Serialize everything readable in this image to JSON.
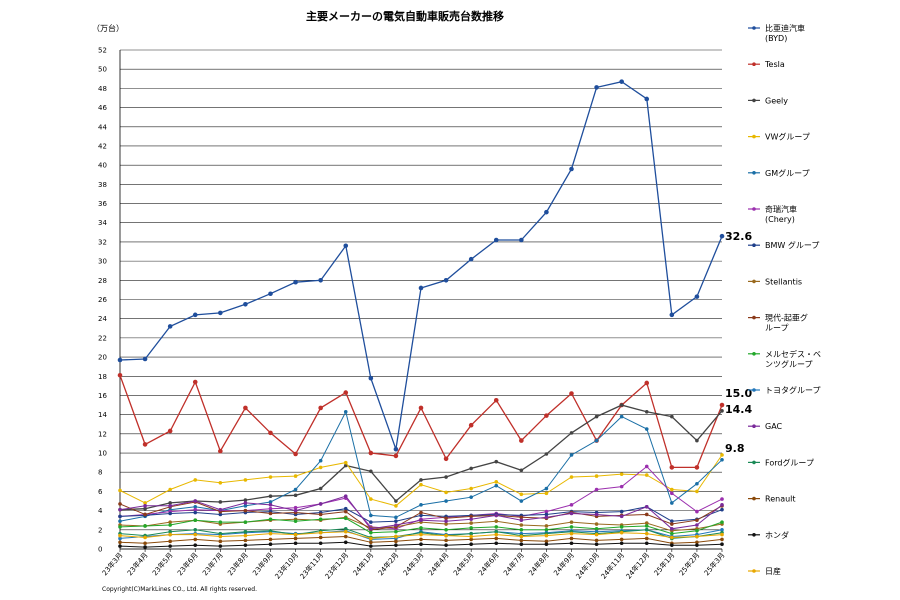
{
  "chart_data": {
    "type": "line",
    "title": "主要メーカーの電気自動車販売台数推移",
    "unit_label": "（万台）",
    "copyright": "Copyright(C)MarkLines CO., Ltd. All rights reserved.",
    "ylim": [
      0,
      52
    ],
    "y_ticks": [
      "0",
      "2",
      "4",
      "6",
      "8",
      "10",
      "12",
      "14",
      "16",
      "18",
      "20",
      "22",
      "24",
      "26",
      "28",
      "30",
      "32",
      "34",
      "36",
      "38",
      "40",
      "42",
      "44",
      "46",
      "48",
      "50",
      "52"
    ],
    "grid": true,
    "legend_position": "right",
    "categories": [
      "23年3月",
      "23年4月",
      "23年5月",
      "23年6月",
      "23年7月",
      "23年8月",
      "23年9月",
      "23年10月",
      "23年11月",
      "23年12月",
      "24年1月",
      "24年2月",
      "24年3月",
      "24年4月",
      "24年5月",
      "24年6月",
      "24年7月",
      "24年8月",
      "24年9月",
      "24年10月",
      "24年11月",
      "24年12月",
      "25年1月",
      "25年2月",
      "25年3月"
    ],
    "series": [
      {
        "name": "比亜迪汽車\n(BYD)",
        "color": "#1f4e9c",
        "values": [
          19.7,
          19.8,
          23.2,
          24.4,
          24.6,
          25.5,
          26.6,
          27.8,
          28.0,
          31.6,
          17.8,
          10.4,
          27.2,
          28.0,
          30.2,
          32.2,
          32.2,
          35.1,
          39.6,
          48.1,
          48.7,
          46.9,
          24.4,
          26.3,
          32.6
        ]
      },
      {
        "name": "Tesla",
        "color": "#c0302a",
        "values": [
          18.1,
          10.9,
          12.3,
          17.4,
          10.2,
          14.7,
          12.1,
          9.9,
          14.7,
          16.3,
          10.0,
          9.7,
          14.7,
          9.4,
          12.9,
          15.5,
          11.3,
          13.9,
          16.2,
          11.3,
          15.0,
          17.3,
          8.5,
          8.5,
          15.0
        ]
      },
      {
        "name": "Geely",
        "color": "#444444",
        "values": [
          4.1,
          4.2,
          4.8,
          5.0,
          4.9,
          5.1,
          5.5,
          5.6,
          6.3,
          8.7,
          8.1,
          5.0,
          7.2,
          7.5,
          8.4,
          9.1,
          8.2,
          9.9,
          12.1,
          13.8,
          15.0,
          14.3,
          13.8,
          11.3,
          14.4
        ]
      },
      {
        "name": "VWグループ",
        "color": "#e8b800",
        "values": [
          6.1,
          4.8,
          6.2,
          7.2,
          6.9,
          7.2,
          7.5,
          7.6,
          8.5,
          9.0,
          5.2,
          4.5,
          6.7,
          5.9,
          6.3,
          7.0,
          5.7,
          5.8,
          7.5,
          7.6,
          7.8,
          7.7,
          6.2,
          6.0,
          9.8
        ]
      },
      {
        "name": "GMグループ",
        "color": "#1a6fa6",
        "values": [
          2.9,
          3.4,
          4.1,
          4.4,
          4.0,
          4.5,
          4.9,
          6.2,
          9.2,
          14.3,
          3.5,
          3.3,
          4.6,
          5.0,
          5.4,
          6.6,
          5.0,
          6.3,
          9.8,
          11.3,
          13.8,
          12.5,
          4.8,
          6.8,
          9.3
        ]
      },
      {
        "name": "奇瑞汽車\n(Chery)",
        "color": "#9b2fae",
        "values": [
          3.4,
          3.6,
          3.9,
          4.1,
          4.0,
          4.0,
          4.2,
          4.3,
          4.7,
          5.3,
          2.3,
          2.1,
          3.1,
          3.3,
          3.5,
          3.7,
          3.4,
          3.9,
          4.6,
          6.2,
          6.5,
          8.6,
          5.8,
          3.9,
          5.2
        ]
      },
      {
        "name": "BMW グループ",
        "color": "#1f3f8a",
        "values": [
          3.4,
          3.5,
          3.7,
          3.8,
          3.6,
          3.8,
          3.9,
          3.6,
          3.8,
          4.2,
          2.8,
          2.9,
          3.5,
          3.4,
          3.5,
          3.6,
          3.5,
          3.6,
          3.9,
          3.8,
          3.9,
          4.4,
          2.9,
          3.1,
          4.1
        ]
      },
      {
        "name": "Stellantis",
        "color": "#9a6a1f",
        "values": [
          2.5,
          2.4,
          2.8,
          3.0,
          2.6,
          2.8,
          3.0,
          3.1,
          3.0,
          3.3,
          2.2,
          2.3,
          2.8,
          2.6,
          2.7,
          2.9,
          2.5,
          2.4,
          2.8,
          2.6,
          2.5,
          2.7,
          1.9,
          2.1,
          2.6
        ]
      },
      {
        "name": "現代-起亜グ\nループ",
        "color": "#8a3a1a",
        "values": [
          4.7,
          3.6,
          4.4,
          4.9,
          3.9,
          4.0,
          3.7,
          3.8,
          3.6,
          3.9,
          2.0,
          2.3,
          3.8,
          3.2,
          3.4,
          3.5,
          3.3,
          3.2,
          3.8,
          3.4,
          3.5,
          3.6,
          2.6,
          3.0,
          4.5
        ]
      },
      {
        "name": "メルセデス・ベ\nンツグループ",
        "color": "#22a82a",
        "values": [
          2.3,
          2.4,
          2.5,
          3.0,
          2.8,
          2.8,
          3.1,
          2.9,
          3.1,
          3.2,
          1.7,
          1.8,
          2.2,
          2.0,
          2.2,
          2.3,
          2.0,
          2.0,
          2.3,
          2.1,
          2.3,
          2.4,
          1.6,
          1.9,
          2.8
        ]
      },
      {
        "name": "トヨタグループ",
        "color": "#2277bb",
        "values": [
          1.1,
          1.3,
          1.5,
          1.6,
          1.5,
          1.7,
          1.8,
          1.6,
          1.7,
          1.9,
          1.0,
          1.1,
          1.8,
          1.5,
          1.6,
          1.8,
          1.6,
          1.7,
          1.9,
          1.8,
          1.9,
          2.0,
          1.3,
          1.5,
          2.0
        ]
      },
      {
        "name": "GAC",
        "color": "#7a2a9a",
        "values": [
          4.1,
          4.5,
          4.5,
          5.0,
          4.1,
          4.8,
          4.6,
          4.0,
          4.7,
          5.5,
          2.1,
          2.5,
          3.0,
          2.9,
          3.1,
          3.5,
          3.0,
          3.3,
          3.7,
          3.6,
          3.4,
          4.4,
          2.1,
          2.5,
          4.6
        ]
      },
      {
        "name": "Fordグループ",
        "color": "#1b8a57",
        "values": [
          1.6,
          1.4,
          1.8,
          2.0,
          1.6,
          1.8,
          1.9,
          1.5,
          1.9,
          2.1,
          1.2,
          1.3,
          1.7,
          1.4,
          1.6,
          1.8,
          1.4,
          1.6,
          1.8,
          1.6,
          1.8,
          2.0,
          1.1,
          1.3,
          1.7
        ]
      },
      {
        "name": "Renault",
        "color": "#8a4a0a",
        "values": [
          0.7,
          0.6,
          0.8,
          1.0,
          0.8,
          0.9,
          1.0,
          1.1,
          1.2,
          1.3,
          0.7,
          0.8,
          1.0,
          0.9,
          1.0,
          1.1,
          0.9,
          0.8,
          1.1,
          0.9,
          1.0,
          1.1,
          0.6,
          0.7,
          1.0
        ]
      },
      {
        "name": "ホンダ",
        "color": "#111111",
        "values": [
          0.3,
          0.2,
          0.3,
          0.4,
          0.3,
          0.4,
          0.5,
          0.6,
          0.6,
          0.7,
          0.3,
          0.4,
          0.5,
          0.4,
          0.5,
          0.6,
          0.5,
          0.5,
          0.6,
          0.5,
          0.6,
          0.6,
          0.4,
          0.4,
          0.5
        ]
      },
      {
        "name": "日産",
        "color": "#e8a800",
        "values": [
          1.4,
          1.2,
          1.5,
          1.5,
          1.3,
          1.4,
          1.6,
          1.5,
          1.7,
          1.8,
          1.1,
          1.3,
          1.5,
          1.4,
          1.3,
          1.5,
          1.3,
          1.4,
          1.6,
          1.5,
          1.7,
          1.6,
          1.2,
          1.3,
          1.5
        ]
      }
    ],
    "annotations": [
      {
        "text": "32.6",
        "series_index": 0,
        "point_index": 24
      },
      {
        "text": "15.0",
        "series_index": 1,
        "point_index": 24
      },
      {
        "text": "14.4",
        "series_index": 2,
        "point_index": 24
      },
      {
        "text": "9.8",
        "series_index": 3,
        "point_index": 24
      }
    ]
  }
}
